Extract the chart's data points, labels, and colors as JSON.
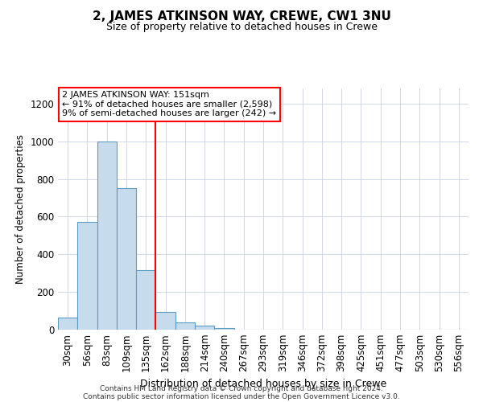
{
  "title": "2, JAMES ATKINSON WAY, CREWE, CW1 3NU",
  "subtitle": "Size of property relative to detached houses in Crewe",
  "xlabel": "Distribution of detached houses by size in Crewe",
  "ylabel": "Number of detached properties",
  "bar_labels": [
    "30sqm",
    "56sqm",
    "83sqm",
    "109sqm",
    "135sqm",
    "162sqm",
    "188sqm",
    "214sqm",
    "240sqm",
    "267sqm",
    "293sqm",
    "319sqm",
    "346sqm",
    "372sqm",
    "398sqm",
    "425sqm",
    "451sqm",
    "477sqm",
    "503sqm",
    "530sqm",
    "556sqm"
  ],
  "bar_values": [
    65,
    570,
    1000,
    750,
    315,
    95,
    40,
    20,
    10,
    0,
    0,
    0,
    0,
    0,
    0,
    0,
    0,
    0,
    0,
    0,
    0
  ],
  "bar_color": "#c6dcec",
  "bar_edgecolor": "#5b9cc4",
  "vline_color": "red",
  "vline_pos": 4.5,
  "ylim": [
    0,
    1280
  ],
  "yticks": [
    0,
    200,
    400,
    600,
    800,
    1000,
    1200
  ],
  "annotation_title": "2 JAMES ATKINSON WAY: 151sqm",
  "annotation_line1": "← 91% of detached houses are smaller (2,598)",
  "annotation_line2": "9% of semi-detached houses are larger (242) →",
  "annotation_box_color": "white",
  "annotation_box_edgecolor": "red",
  "footer1": "Contains HM Land Registry data © Crown copyright and database right 2024.",
  "footer2": "Contains public sector information licensed under the Open Government Licence v3.0.",
  "background_color": "white",
  "grid_color": "#d0d8e8"
}
